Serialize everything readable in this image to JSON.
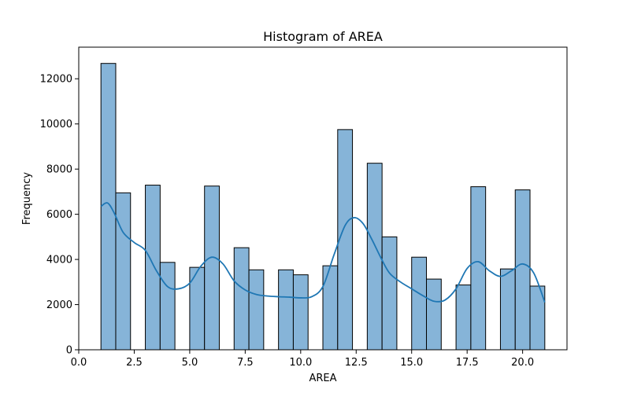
{
  "chart_data": {
    "type": "bar",
    "title": "Histogram of AREA",
    "xlabel": "AREA",
    "ylabel": "Frequency",
    "xlim": [
      0,
      22
    ],
    "ylim": [
      0,
      13400
    ],
    "x_ticks": [
      "0.0",
      "2.5",
      "5.0",
      "7.5",
      "10.0",
      "12.5",
      "15.0",
      "17.5",
      "20.0"
    ],
    "x_tick_values": [
      0,
      2.5,
      5,
      7.5,
      10,
      12.5,
      15,
      17.5,
      20
    ],
    "y_ticks": [
      "0",
      "2000",
      "4000",
      "6000",
      "8000",
      "10000",
      "12000"
    ],
    "y_tick_values": [
      0,
      2000,
      4000,
      6000,
      8000,
      10000,
      12000
    ],
    "bin_edges": [
      1.0,
      1.667,
      2.333,
      3.0,
      3.667,
      4.333,
      5.0,
      5.667,
      6.333,
      7.0,
      7.667,
      8.333,
      9.0,
      9.667,
      10.333,
      11.0,
      11.667,
      12.333,
      13.0,
      13.667,
      14.333,
      15.0,
      15.667,
      16.333,
      17.0,
      17.667,
      18.333,
      19.0,
      19.667,
      20.333,
      21.0
    ],
    "values": [
      12680,
      6950,
      0,
      7290,
      3870,
      0,
      3650,
      7250,
      0,
      4520,
      3540,
      0,
      3540,
      3320,
      0,
      3720,
      9750,
      0,
      8260,
      5000,
      0,
      4100,
      3130,
      0,
      2870,
      7220,
      0,
      3580,
      7080,
      2820
    ],
    "kde": {
      "x": [
        1.0,
        1.3,
        1.6,
        2.0,
        2.5,
        3.0,
        3.5,
        4.0,
        4.5,
        5.0,
        5.5,
        6.0,
        6.5,
        7.0,
        7.5,
        8.0,
        8.5,
        9.0,
        9.5,
        10.0,
        10.5,
        11.0,
        11.5,
        12.0,
        12.4,
        12.8,
        13.2,
        13.6,
        14.0,
        14.5,
        15.0,
        15.5,
        16.0,
        16.5,
        17.0,
        17.5,
        18.0,
        18.5,
        19.0,
        19.5,
        20.0,
        20.5,
        21.0
      ],
      "y": [
        6350,
        6500,
        6050,
        5200,
        4750,
        4400,
        3500,
        2800,
        2700,
        2950,
        3700,
        4100,
        3800,
        3050,
        2650,
        2450,
        2380,
        2350,
        2330,
        2300,
        2350,
        2800,
        4200,
        5500,
        5850,
        5600,
        4900,
        4100,
        3400,
        3000,
        2700,
        2400,
        2150,
        2200,
        2700,
        3600,
        3900,
        3500,
        3250,
        3500,
        3800,
        3400,
        2100
      ]
    },
    "bar_color": "#86b4d8",
    "bar_edge_color": "#000000",
    "line_color": "#1f77b4",
    "grid": false
  }
}
